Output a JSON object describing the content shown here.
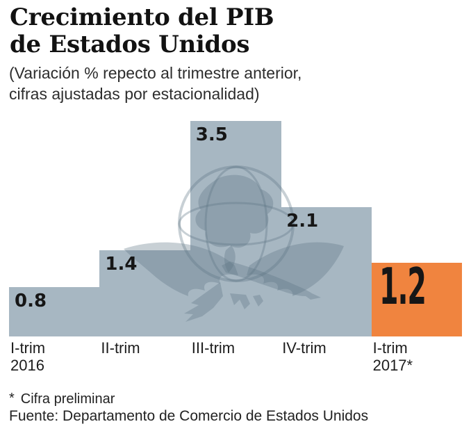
{
  "header": {
    "title": "Crecimiento del PIB\nde Estados Unidos",
    "subtitle": "(Variación % repecto al trimestre anterior,\ncifras ajustadas por estacionalidad)"
  },
  "chart_data": {
    "type": "bar",
    "title": "Crecimiento del PIB de Estados Unidos",
    "subtitle": "(Variación % repecto al trimestre anterior, cifras ajustadas por estacionalidad)",
    "categories": [
      "I-trim\n2016",
      "II-trim",
      "III-trim",
      "IV-trim",
      "I-trim\n2017*"
    ],
    "values": [
      0.8,
      1.4,
      3.5,
      2.1,
      1.2
    ],
    "value_labels": [
      "0.8",
      "1.4",
      "3.5",
      "2.1",
      "1.2"
    ],
    "unit": "%",
    "ylim": [
      0,
      3.5
    ],
    "grid": false,
    "legend": false,
    "bar_gap": 0,
    "highlight_index": 4,
    "colors": {
      "bar": "#a7b7c2",
      "highlight": "#f0843f",
      "value_label": "#161616",
      "watermark": "rgba(93,116,131,0.34)"
    },
    "watermark": "eagle-over-globe-logo"
  },
  "footer": {
    "note_symbol": "*",
    "note_text": "Cifra preliminar",
    "source": "Fuente: Departamento de Comercio de Estados Unidos"
  }
}
